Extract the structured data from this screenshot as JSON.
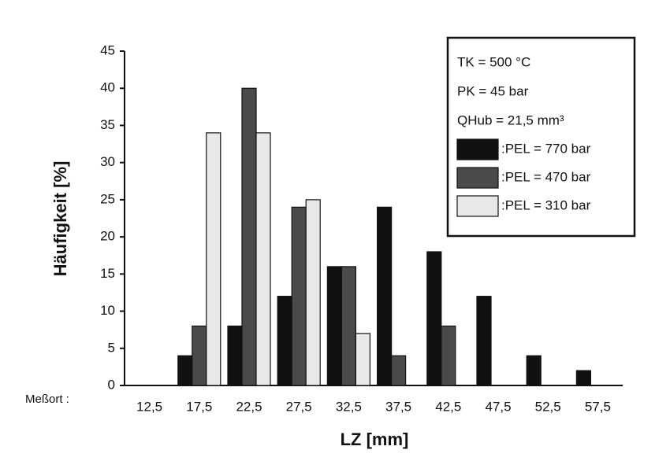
{
  "chart_data": {
    "type": "bar",
    "y_label": "Häufigkeit [%]",
    "x_label": "LZ [mm]",
    "x_prefix": "Meßort :",
    "notes": [
      "TK = 500 °C",
      "PK = 45 bar",
      "QHub = 21,5 mm³"
    ],
    "categories": [
      "12,5",
      "17,5",
      "22,5",
      "27,5",
      "32,5",
      "37,5",
      "42,5",
      "47,5",
      "52,5",
      "57,5"
    ],
    "series": [
      {
        "name": ":PEL = 770 bar",
        "color": "#111111",
        "values": [
          0,
          4,
          8,
          12,
          16,
          24,
          18,
          12,
          4,
          2
        ]
      },
      {
        "name": ":PEL = 470 bar",
        "color": "#4a4a4a",
        "values": [
          0,
          8,
          40,
          24,
          16,
          4,
          8,
          0,
          0,
          0
        ]
      },
      {
        "name": ":PEL = 310 bar",
        "color": "#e8e8e8",
        "values": [
          0,
          34,
          34,
          25,
          7,
          0,
          0,
          0,
          0,
          0
        ]
      }
    ],
    "ylim": [
      0,
      45
    ],
    "yticks": [
      0,
      5,
      10,
      15,
      20,
      25,
      30,
      35,
      40,
      45
    ],
    "grid": false,
    "legend": "upper right"
  }
}
